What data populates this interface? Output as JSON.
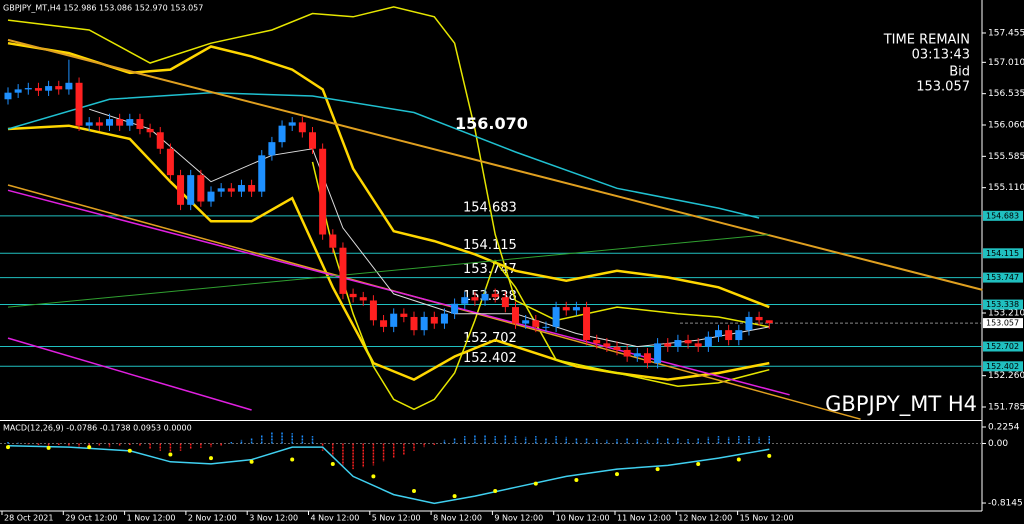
{
  "chart_data": {
    "type": "candlestick",
    "header": "GBPJPY_MT,H4  152.986 153.086 152.970 153.057",
    "watermark": "GBPJPY_MT H4",
    "time_remain_label": "TIME REMAIN",
    "time_remain": "03:13:43",
    "bid_label": "Bid",
    "bid": 153.057,
    "last_price": 153.057,
    "annotation": {
      "value": 156.07,
      "label": "156.070"
    },
    "categories": [
      "28 Oct 2021",
      "29 Oct 12:00",
      "1 Nov 12:00",
      "2 Nov 12:00",
      "3 Nov 12:00",
      "4 Nov 12:00",
      "5 Nov 12:00",
      "8 Nov 12:00",
      "9 Nov 12:00",
      "10 Nov 12:00",
      "11 Nov 12:00",
      "12 Nov 12:00",
      "15 Nov 12:00"
    ],
    "ylim": [
      151.588,
      157.955
    ],
    "yticks": [
      157.455,
      {
        "value": 157.01,
        "label": "157.010"
      },
      156.535,
      {
        "value": 156.06,
        "label": "156.060"
      },
      155.585,
      {
        "value": 155.11,
        "label": "155.110"
      },
      {
        "value": 153.21,
        "label": "153.210"
      },
      {
        "value": 152.26,
        "label": "152.260"
      },
      151.785
    ],
    "levels": [
      154.683,
      154.115,
      153.747,
      153.338,
      152.702,
      152.402
    ],
    "up_color": "#1e90ff",
    "down_color": "#ff2020",
    "open": [
      156.45,
      156.55,
      156.6,
      156.62,
      156.58,
      156.65,
      156.6,
      156.7,
      156.05,
      156.1,
      156.05,
      156.15,
      156.05,
      156.15,
      156.0,
      155.95,
      155.7,
      155.3,
      154.85,
      155.3,
      154.9,
      155.05,
      155.1,
      155.05,
      155.15,
      155.05,
      155.6,
      155.8,
      156.05,
      156.1,
      155.95,
      155.7,
      154.4,
      154.2,
      153.5,
      153.45,
      153.4,
      153.1,
      153.0,
      153.2,
      153.15,
      152.95,
      153.15,
      153.05,
      153.2,
      153.35,
      153.45,
      153.4,
      153.5,
      153.45,
      153.3,
      153.05,
      153.1,
      153.0,
      153.0,
      153.3,
      153.25,
      153.3,
      152.8,
      152.75,
      152.7,
      152.65,
      152.55,
      152.6,
      152.45,
      152.75,
      152.7,
      152.8,
      152.75,
      152.7,
      152.85,
      152.95,
      152.8,
      152.95,
      153.15,
      153.1
    ],
    "high": [
      156.63,
      156.68,
      156.7,
      156.7,
      156.73,
      156.73,
      157.05,
      156.78,
      156.18,
      156.18,
      156.23,
      156.23,
      156.23,
      156.23,
      156.08,
      156.03,
      155.78,
      155.38,
      155.38,
      155.38,
      155.13,
      155.18,
      155.18,
      155.23,
      155.23,
      155.68,
      155.88,
      156.13,
      156.18,
      156.18,
      156.03,
      155.78,
      154.48,
      154.28,
      153.58,
      153.53,
      153.48,
      153.18,
      153.28,
      153.28,
      153.23,
      153.23,
      153.23,
      153.28,
      153.43,
      153.53,
      153.53,
      153.58,
      153.58,
      153.53,
      153.38,
      153.18,
      153.18,
      153.08,
      153.38,
      153.38,
      153.38,
      153.38,
      152.88,
      152.83,
      152.78,
      152.73,
      152.68,
      152.68,
      152.83,
      152.83,
      152.88,
      152.88,
      152.83,
      152.93,
      153.03,
      153.03,
      153.03,
      153.23,
      153.23,
      153.086
    ],
    "low": [
      156.37,
      156.47,
      156.52,
      156.5,
      156.5,
      156.52,
      156.52,
      155.97,
      155.97,
      155.97,
      155.97,
      155.97,
      155.97,
      155.92,
      155.87,
      155.62,
      155.22,
      154.77,
      154.77,
      154.82,
      154.82,
      154.97,
      154.97,
      154.97,
      154.97,
      154.97,
      155.52,
      155.72,
      155.97,
      155.87,
      155.62,
      154.32,
      154.12,
      153.42,
      153.37,
      153.32,
      153.02,
      152.92,
      152.92,
      153.07,
      152.87,
      152.87,
      152.97,
      152.97,
      153.12,
      153.27,
      153.32,
      153.32,
      153.37,
      153.22,
      152.97,
      152.97,
      152.92,
      152.92,
      152.92,
      153.17,
      153.17,
      152.72,
      152.67,
      152.62,
      152.57,
      152.47,
      152.47,
      152.37,
      152.37,
      152.62,
      152.62,
      152.67,
      152.62,
      152.62,
      152.77,
      152.72,
      152.72,
      152.87,
      153.02,
      152.97
    ],
    "close": [
      156.55,
      156.6,
      156.62,
      156.58,
      156.65,
      156.6,
      156.7,
      156.05,
      156.1,
      156.05,
      156.15,
      156.05,
      156.15,
      156.0,
      155.95,
      155.7,
      155.3,
      154.85,
      155.3,
      154.9,
      155.05,
      155.1,
      155.05,
      155.15,
      155.05,
      155.6,
      155.8,
      156.05,
      156.1,
      155.95,
      155.7,
      154.4,
      154.2,
      153.5,
      153.45,
      153.4,
      153.1,
      153.0,
      153.2,
      153.15,
      152.95,
      153.15,
      153.05,
      153.2,
      153.35,
      153.45,
      153.4,
      153.5,
      153.45,
      153.3,
      153.05,
      153.1,
      153.0,
      153.0,
      153.3,
      153.25,
      153.3,
      152.8,
      152.75,
      152.7,
      152.65,
      152.55,
      152.6,
      152.45,
      152.75,
      152.7,
      152.8,
      152.75,
      152.7,
      152.85,
      152.95,
      152.8,
      152.95,
      153.15,
      153.1,
      153.057
    ],
    "overlays": [
      {
        "color": "#ffd700",
        "width": 2.5,
        "x": [
          0,
          6,
          12,
          16,
          20,
          24,
          28,
          31,
          34,
          38,
          42,
          46,
          50,
          55,
          60,
          65,
          70,
          75
        ],
        "values": [
          157.3,
          157.15,
          156.85,
          156.9,
          157.25,
          157.1,
          156.9,
          156.6,
          155.4,
          154.45,
          154.3,
          154.1,
          153.85,
          153.7,
          153.85,
          153.75,
          153.6,
          153.3
        ]
      },
      {
        "color": "#ffd700",
        "width": 2.5,
        "x": [
          0,
          6,
          12,
          16,
          20,
          24,
          28,
          32,
          36,
          40,
          44,
          48,
          52,
          56,
          60,
          65,
          70,
          75
        ],
        "values": [
          156.0,
          156.05,
          155.85,
          155.2,
          154.6,
          154.6,
          154.95,
          153.6,
          152.45,
          152.2,
          152.55,
          152.8,
          152.6,
          152.4,
          152.3,
          152.2,
          152.3,
          152.45
        ]
      },
      {
        "color": "#e6e600",
        "width": 1.5,
        "x": [
          0,
          8,
          14,
          20,
          26,
          30,
          34,
          38,
          42,
          44,
          46,
          48,
          50,
          54,
          60,
          66,
          70,
          75
        ],
        "values": [
          157.65,
          157.5,
          157.0,
          157.3,
          157.5,
          157.75,
          157.7,
          157.85,
          157.7,
          157.3,
          156.0,
          154.4,
          153.4,
          153.1,
          153.3,
          153.2,
          153.15,
          153.0
        ]
      },
      {
        "color": "#e6e600",
        "width": 1.5,
        "x": [
          30,
          32,
          34,
          36,
          38,
          40,
          42,
          44,
          46,
          48,
          50,
          54,
          60,
          66,
          70,
          75
        ],
        "values": [
          155.5,
          154.2,
          153.2,
          152.4,
          151.9,
          151.75,
          151.9,
          152.3,
          153.1,
          154.0,
          153.6,
          152.5,
          152.3,
          152.1,
          152.15,
          152.35
        ]
      },
      {
        "color": "#20c0d0",
        "width": 1.5,
        "x": [
          0,
          10,
          20,
          30,
          40,
          50,
          60,
          70,
          74
        ],
        "values": [
          156.0,
          156.45,
          156.55,
          156.5,
          156.25,
          155.65,
          155.1,
          154.8,
          154.65
        ]
      },
      {
        "color": "#e0a020",
        "width": 2,
        "x": [
          0,
          96
        ],
        "values": [
          157.35,
          153.56
        ]
      },
      {
        "color": "#e0a020",
        "width": 1.5,
        "x": [
          0,
          84
        ],
        "values": [
          155.15,
          151.6
        ]
      },
      {
        "color": "#e020e0",
        "width": 1.5,
        "x": [
          0,
          77
        ],
        "values": [
          155.07,
          151.97
        ]
      },
      {
        "color": "#e020e0",
        "width": 1.5,
        "x": [
          0,
          24
        ],
        "values": [
          152.83,
          151.74
        ]
      },
      {
        "color": "#dddddd",
        "width": 1,
        "x": [
          8,
          14,
          20,
          26,
          30,
          33,
          38,
          44,
          50,
          56,
          62,
          68,
          75
        ],
        "values": [
          156.3,
          156.0,
          155.2,
          155.6,
          155.7,
          154.5,
          153.5,
          153.2,
          153.2,
          152.9,
          152.7,
          152.8,
          153.0
        ]
      },
      {
        "color": "#30a030",
        "width": 1,
        "x": [
          0,
          75
        ],
        "values": [
          153.3,
          154.4
        ]
      }
    ],
    "macd": {
      "label": "MACD(12,26,9) -0.0786 -0.1738 0.0953 0.0000",
      "ylim": [
        -0.91,
        0.3075
      ],
      "yticks": [
        0.2254,
        {
          "value": 0,
          "label": "0.00"
        },
        -0.8145
      ],
      "histogram": [
        0.02,
        0.01,
        -0.01,
        -0.02,
        -0.03,
        -0.02,
        -0.03,
        -0.05,
        -0.06,
        -0.04,
        -0.05,
        -0.03,
        -0.02,
        -0.04,
        -0.08,
        -0.1,
        -0.12,
        -0.1,
        -0.08,
        -0.06,
        -0.05,
        -0.03,
        0.02,
        0.05,
        0.08,
        0.12,
        0.15,
        0.16,
        0.14,
        0.12,
        0.1,
        -0.1,
        -0.2,
        -0.3,
        -0.35,
        -0.33,
        -0.3,
        -0.25,
        -0.2,
        -0.15,
        -0.1,
        -0.05,
        -0.02,
        0.05,
        0.08,
        0.1,
        0.12,
        0.11,
        0.1,
        0.12,
        0.1,
        0.09,
        0.1,
        0.08,
        0.1,
        0.09,
        0.07,
        0.08,
        0.06,
        0.05,
        0.06,
        0.07,
        0.06,
        0.05,
        0.07,
        0.08,
        0.07,
        0.06,
        0.08,
        0.09,
        0.1,
        0.09,
        0.1,
        0.1,
        0.09,
        0.1
      ],
      "line": {
        "color": "#40d0f0",
        "x": [
          0,
          6,
          12,
          16,
          20,
          24,
          28,
          31,
          34,
          38,
          42,
          46,
          50,
          55,
          60,
          65,
          70,
          75
        ],
        "values": [
          -0.03,
          -0.05,
          -0.1,
          -0.25,
          -0.28,
          -0.22,
          -0.05,
          -0.05,
          -0.45,
          -0.7,
          -0.82,
          -0.72,
          -0.6,
          -0.45,
          -0.35,
          -0.3,
          -0.2,
          -0.08
        ]
      },
      "signal": {
        "color": "#ffff00",
        "x": [
          0,
          4,
          8,
          12,
          16,
          20,
          24,
          28,
          32,
          36,
          40,
          44,
          48,
          52,
          56,
          60,
          64,
          68,
          72,
          75
        ],
        "values": [
          -0.05,
          -0.06,
          -0.05,
          -0.1,
          -0.15,
          -0.2,
          -0.25,
          -0.22,
          -0.28,
          -0.45,
          -0.65,
          -0.72,
          -0.65,
          -0.55,
          -0.5,
          -0.42,
          -0.35,
          -0.28,
          -0.22,
          -0.17
        ]
      }
    }
  }
}
